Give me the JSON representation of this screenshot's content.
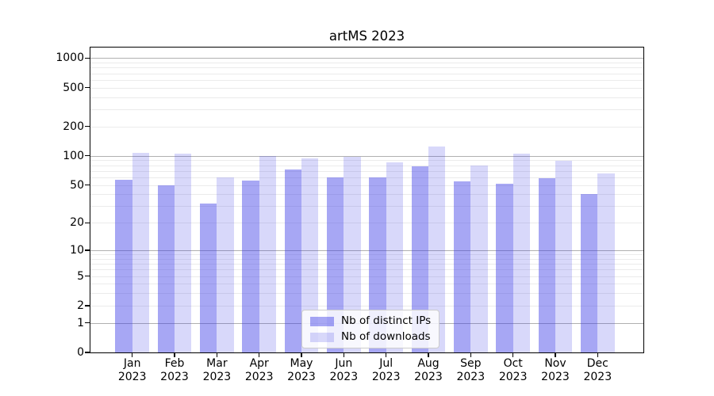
{
  "title": "artMS 2023",
  "chart_data": {
    "type": "bar",
    "title": "artMS 2023",
    "yscale": "log1p (symlog-like, log above 1, 0 at baseline)",
    "grid": true,
    "legend_position": "lower center",
    "xlabel": "",
    "ylabel": "",
    "categories": [
      "Jan",
      "Feb",
      "Mar",
      "Apr",
      "May",
      "Jun",
      "Jul",
      "Aug",
      "Sep",
      "Oct",
      "Nov",
      "Dec"
    ],
    "year_label": "2023",
    "series": [
      {
        "name": "Nb of distinct IPs",
        "fill": "#3C3CE673",
        "solid_hex": "#a7a7f4",
        "values": [
          57,
          50,
          32,
          56,
          73,
          60,
          60,
          78,
          55,
          52,
          59,
          40
        ]
      },
      {
        "name": "Nb of downloads",
        "fill": "#3C3CE633",
        "solid_hex": "#d8d8fa",
        "values": [
          108,
          105,
          60,
          100,
          95,
          98,
          85,
          126,
          79,
          105,
          89,
          66
        ]
      }
    ],
    "ytick_values": [
      0,
      1,
      2,
      5,
      10,
      20,
      50,
      100,
      200,
      500,
      1000
    ],
    "ytick_labels": [
      "0",
      "1",
      "2",
      "5",
      "10",
      "20",
      "50",
      "100",
      "200",
      "500",
      "1000"
    ],
    "major_gridline_values": [
      1,
      10,
      100,
      1000
    ],
    "minor_gridline_decades": [
      1,
      10,
      100
    ],
    "ylim": [
      0,
      1284
    ]
  },
  "legend": {
    "items": [
      "Nb of distinct IPs",
      "Nb of downloads"
    ]
  },
  "colors": {
    "background": "#ffffff",
    "axis": "#000000",
    "major_grid": "#b0b0b0",
    "minor_grid": "#ebebeb",
    "bar_distinct_ips": "#a7a7f4",
    "bar_downloads": "#d8d8fa",
    "legend_border": "#cccccc",
    "text": "#000000"
  }
}
